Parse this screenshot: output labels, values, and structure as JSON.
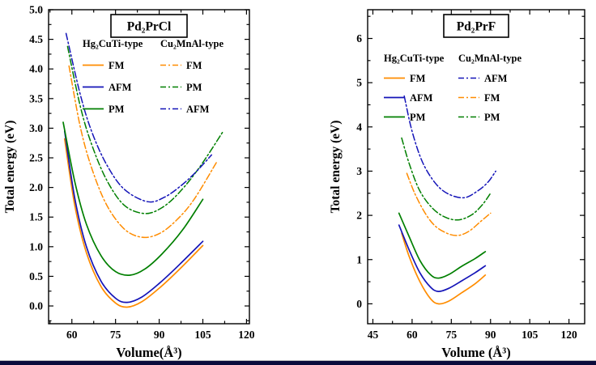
{
  "page": {
    "background": "#ffffff",
    "bottom_bar_color": "#0b0b3b"
  },
  "chart_data": [
    {
      "id": "pd2prcl",
      "type": "line",
      "title": "Pd₂PrCl",
      "xlabel": "Volume(Å³)",
      "ylabel": "Total energy (eV)",
      "xlim": [
        52,
        121
      ],
      "ylim": [
        -0.3,
        5.0
      ],
      "xticks": [
        "60",
        "75",
        "90",
        "105",
        "120"
      ],
      "yticks": [
        "0.0",
        "0.5",
        "1.0",
        "1.5",
        "2.0",
        "2.5",
        "3.0",
        "3.5",
        "4.0",
        "4.5",
        "5.0"
      ],
      "grid": false,
      "legend": {
        "columns": [
          {
            "header": "Hg₂CuTi-type",
            "items": [
              {
                "label": "FM",
                "color": "#FF8C00",
                "dash": "solid"
              },
              {
                "label": "AFM",
                "color": "#1414B8",
                "dash": "solid"
              },
              {
                "label": "PM",
                "color": "#007F00",
                "dash": "solid"
              }
            ]
          },
          {
            "header": "Cu₂MnAl-type",
            "items": [
              {
                "label": "FM",
                "color": "#FF8C00",
                "dash": "dashdot"
              },
              {
                "label": "PM",
                "color": "#007F00",
                "dash": "dashdot"
              },
              {
                "label": "AFM",
                "color": "#1414B8",
                "dash": "dashdot"
              }
            ]
          }
        ]
      },
      "series": [
        {
          "name": "Hg2CuTi FM",
          "color": "#FF8C00",
          "dash": "solid",
          "points": [
            [
              57.5,
              2.82
            ],
            [
              61,
              1.7
            ],
            [
              65,
              0.9
            ],
            [
              70,
              0.33
            ],
            [
              75,
              0.05
            ],
            [
              79,
              -0.02
            ],
            [
              84,
              0.07
            ],
            [
              90,
              0.3
            ],
            [
              97,
              0.62
            ],
            [
              105,
              1.02
            ]
          ]
        },
        {
          "name": "Hg2CuTi AFM",
          "color": "#1414B8",
          "dash": "solid",
          "points": [
            [
              57.5,
              2.95
            ],
            [
              61,
              1.82
            ],
            [
              65,
              1.0
            ],
            [
              70,
              0.42
            ],
            [
              75,
              0.13
            ],
            [
              79,
              0.06
            ],
            [
              84,
              0.15
            ],
            [
              90,
              0.38
            ],
            [
              97,
              0.7
            ],
            [
              105,
              1.09
            ]
          ]
        },
        {
          "name": "Hg2CuTi PM",
          "color": "#007F00",
          "dash": "solid",
          "points": [
            [
              57,
              3.1
            ],
            [
              61,
              2.1
            ],
            [
              65,
              1.38
            ],
            [
              70,
              0.85
            ],
            [
              75,
              0.58
            ],
            [
              80,
              0.52
            ],
            [
              85,
              0.62
            ],
            [
              91,
              0.88
            ],
            [
              98,
              1.28
            ],
            [
              105,
              1.8
            ]
          ]
        },
        {
          "name": "Cu2MnAl FM",
          "color": "#FF8C00",
          "dash": "dashdot",
          "points": [
            [
              59,
              4.05
            ],
            [
              63,
              3.0
            ],
            [
              67,
              2.3
            ],
            [
              72,
              1.7
            ],
            [
              78,
              1.3
            ],
            [
              84,
              1.16
            ],
            [
              90,
              1.22
            ],
            [
              96,
              1.45
            ],
            [
              102,
              1.8
            ],
            [
              110,
              2.45
            ]
          ]
        },
        {
          "name": "Cu2MnAl PM",
          "color": "#007F00",
          "dash": "dashdot",
          "points": [
            [
              58.5,
              4.38
            ],
            [
              63,
              3.35
            ],
            [
              67,
              2.7
            ],
            [
              72,
              2.12
            ],
            [
              78,
              1.7
            ],
            [
              85,
              1.56
            ],
            [
              91,
              1.66
            ],
            [
              97,
              1.92
            ],
            [
              104,
              2.35
            ],
            [
              112,
              2.95
            ]
          ]
        },
        {
          "name": "Cu2MnAl AFM",
          "color": "#1414B8",
          "dash": "dashdot",
          "points": [
            [
              58,
              4.6
            ],
            [
              63,
              3.55
            ],
            [
              67,
              2.92
            ],
            [
              72,
              2.38
            ],
            [
              78,
              1.97
            ],
            [
              86,
              1.76
            ],
            [
              92,
              1.84
            ],
            [
              98,
              2.05
            ],
            [
              103,
              2.28
            ],
            [
              108,
              2.55
            ]
          ]
        }
      ]
    },
    {
      "id": "pd2prf",
      "type": "line",
      "title": "Pd₂PrF",
      "xlabel": "Volume (Å³)",
      "ylabel": "Total energy (eV)",
      "xlim": [
        43,
        126
      ],
      "ylim": [
        -0.45,
        6.65
      ],
      "xticks": [
        "45",
        "60",
        "75",
        "90",
        "105",
        "120"
      ],
      "yticks": [
        "0",
        "1",
        "2",
        "3",
        "4",
        "5",
        "6"
      ],
      "grid": false,
      "legend": {
        "columns": [
          {
            "header": "Hg₂CuTi-type",
            "items": [
              {
                "label": "FM",
                "color": "#FF8C00",
                "dash": "solid"
              },
              {
                "label": "AFM",
                "color": "#1414B8",
                "dash": "solid"
              },
              {
                "label": "PM",
                "color": "#007F00",
                "dash": "solid"
              }
            ]
          },
          {
            "header": "Cu₂MnAl-type",
            "items": [
              {
                "label": "AFM",
                "color": "#1414B8",
                "dash": "dashdot"
              },
              {
                "label": "FM",
                "color": "#FF8C00",
                "dash": "dashdot"
              },
              {
                "label": "PM",
                "color": "#007F00",
                "dash": "dashdot"
              }
            ]
          }
        ]
      },
      "series": [
        {
          "name": "Hg2CuTi FM",
          "color": "#FF8C00",
          "dash": "solid",
          "points": [
            [
              56,
              1.6
            ],
            [
              59,
              1.05
            ],
            [
              63,
              0.5
            ],
            [
              67,
              0.12
            ],
            [
              70,
              0.0
            ],
            [
              74,
              0.06
            ],
            [
              79,
              0.25
            ],
            [
              84,
              0.45
            ],
            [
              88,
              0.65
            ]
          ]
        },
        {
          "name": "Hg2CuTi AFM",
          "color": "#1414B8",
          "dash": "solid",
          "points": [
            [
              55,
              1.78
            ],
            [
              59,
              1.2
            ],
            [
              63,
              0.7
            ],
            [
              67,
              0.38
            ],
            [
              70,
              0.28
            ],
            [
              74,
              0.35
            ],
            [
              79,
              0.52
            ],
            [
              84,
              0.7
            ],
            [
              88,
              0.86
            ]
          ]
        },
        {
          "name": "Hg2CuTi PM",
          "color": "#007F00",
          "dash": "solid",
          "points": [
            [
              55,
              2.05
            ],
            [
              59,
              1.5
            ],
            [
              63,
              0.98
            ],
            [
              67,
              0.66
            ],
            [
              70,
              0.58
            ],
            [
              74,
              0.66
            ],
            [
              79,
              0.85
            ],
            [
              84,
              1.02
            ],
            [
              88,
              1.18
            ]
          ]
        },
        {
          "name": "Cu2MnAl AFM",
          "color": "#1414B8",
          "dash": "dashdot",
          "points": [
            [
              57,
              4.7
            ],
            [
              60,
              3.9
            ],
            [
              64,
              3.2
            ],
            [
              69,
              2.72
            ],
            [
              74,
              2.48
            ],
            [
              80,
              2.4
            ],
            [
              85,
              2.55
            ],
            [
              89,
              2.75
            ],
            [
              92,
              3.0
            ]
          ]
        },
        {
          "name": "Cu2MnAl PM",
          "color": "#007F00",
          "dash": "dashdot",
          "points": [
            [
              56,
              3.75
            ],
            [
              59,
              3.15
            ],
            [
              63,
              2.55
            ],
            [
              68,
              2.15
            ],
            [
              73,
              1.95
            ],
            [
              78,
              1.9
            ],
            [
              83,
              2.02
            ],
            [
              87,
              2.25
            ],
            [
              90,
              2.5
            ]
          ]
        },
        {
          "name": "Cu2MnAl FM",
          "color": "#FF8C00",
          "dash": "dashdot",
          "points": [
            [
              58,
              2.95
            ],
            [
              61,
              2.5
            ],
            [
              65,
              2.05
            ],
            [
              69,
              1.75
            ],
            [
              74,
              1.58
            ],
            [
              78,
              1.55
            ],
            [
              82,
              1.65
            ],
            [
              86,
              1.85
            ],
            [
              90,
              2.05
            ]
          ]
        }
      ]
    }
  ]
}
